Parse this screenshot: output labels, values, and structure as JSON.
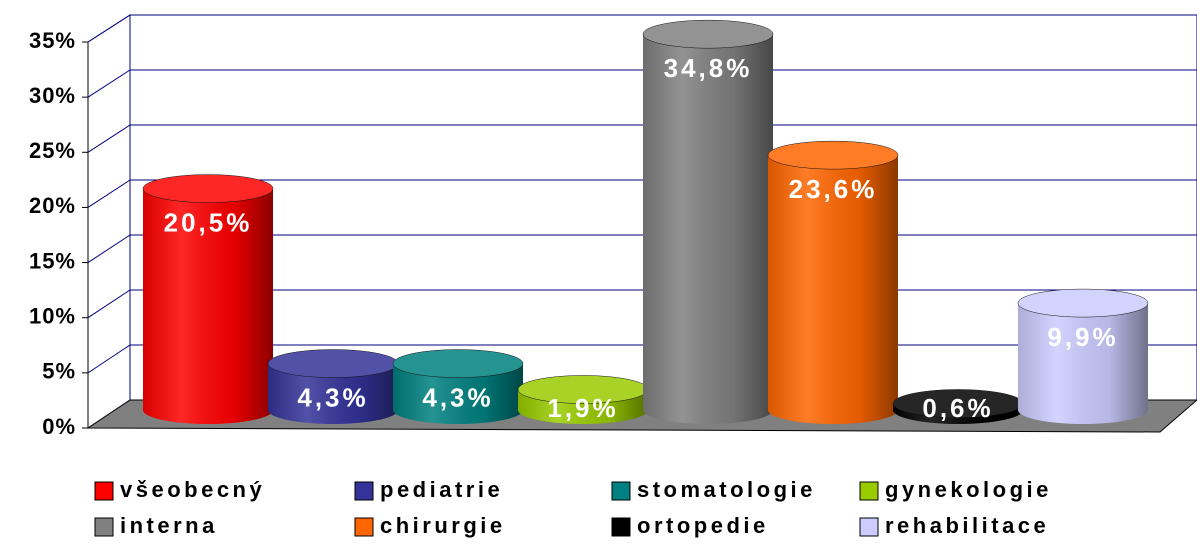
{
  "chart_data": {
    "type": "bar3d",
    "series": [
      {
        "name": "všeobecný",
        "color": "#ff0000",
        "values": [
          20.5
        ],
        "value_labels": [
          "20,5%"
        ]
      },
      {
        "name": "pediatrie",
        "color": "#333399",
        "values": [
          4.3
        ],
        "value_labels": [
          "4,3%"
        ]
      },
      {
        "name": "stomatologie",
        "color": "#008080",
        "values": [
          4.3
        ],
        "value_labels": [
          "4,3%"
        ]
      },
      {
        "name": "gynekologie",
        "color": "#99cc00",
        "values": [
          1.9
        ],
        "value_labels": [
          "1,9%"
        ]
      },
      {
        "name": "interna",
        "color": "#808080",
        "values": [
          34.8
        ],
        "value_labels": [
          "34,8%"
        ]
      },
      {
        "name": "chirurgie",
        "color": "#ff6600",
        "values": [
          23.6
        ],
        "value_labels": [
          "23,6%"
        ]
      },
      {
        "name": "ortopedie",
        "color": "#000000",
        "values": [
          0.6
        ],
        "value_labels": [
          "0,6%"
        ]
      },
      {
        "name": "rehabilitace",
        "color": "#ccccff",
        "values": [
          9.9
        ],
        "value_labels": [
          "9,9%"
        ]
      }
    ],
    "ylim": [
      0,
      35
    ],
    "yticks": [
      {
        "value": 0,
        "label": "0%"
      },
      {
        "value": 5,
        "label": "5%"
      },
      {
        "value": 10,
        "label": "10%"
      },
      {
        "value": 15,
        "label": "15%"
      },
      {
        "value": 20,
        "label": "20%"
      },
      {
        "value": 25,
        "label": "25%"
      },
      {
        "value": 30,
        "label": "30%"
      },
      {
        "value": 35,
        "label": "35%"
      }
    ],
    "grid": true,
    "legend": "bottom"
  }
}
